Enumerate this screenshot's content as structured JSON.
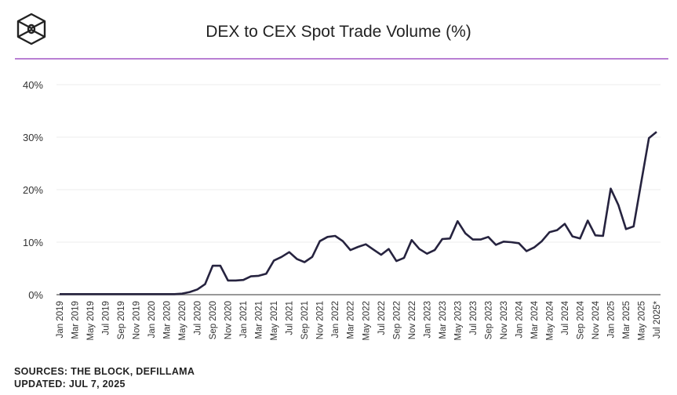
{
  "header": {
    "title": "DEX to CEX Spot Trade Volume (%)",
    "logo": "the-block-cube-logo"
  },
  "footer": {
    "sources": "SOURCES: THE BLOCK, DEFILLAMA",
    "updated": "UPDATED: JUL 7, 2025"
  },
  "colors": {
    "line": "#26233f",
    "rule": "#b97fd3",
    "grid": "#ececec",
    "axis": "#777777"
  },
  "chart_data": {
    "type": "line",
    "title": "DEX to CEX Spot Trade Volume (%)",
    "xlabel": "",
    "ylabel": "",
    "ylim": [
      0,
      40
    ],
    "yticks": [
      "0%",
      "10%",
      "20%",
      "30%",
      "40%"
    ],
    "grid": true,
    "xtick_labels": [
      "Jan 2019",
      "Mar 2019",
      "May 2019",
      "Jul 2019",
      "Sep 2019",
      "Nov 2019",
      "Jan 2020",
      "Mar 2020",
      "May 2020",
      "Jul 2020",
      "Sep 2020",
      "Nov 2020",
      "Jan 2021",
      "Mar 2021",
      "May 2021",
      "Jul 2021",
      "Sep 2021",
      "Nov 2021",
      "Jan 2022",
      "Mar 2022",
      "May 2022",
      "Jul 2022",
      "Sep 2022",
      "Nov 2022",
      "Jan 2023",
      "Mar 2023",
      "May 2023",
      "Jul 2023",
      "Sep 2023",
      "Nov 2023",
      "Jan 2024",
      "Mar 2024",
      "May 2024",
      "Jul 2024",
      "Sep 2024",
      "Nov 2024",
      "Jan 2025",
      "Mar 2025",
      "May 2025",
      "Jul 2025*"
    ],
    "x_start": "Jan 2019",
    "x_end": "Jul 2025",
    "x_interval": "monthly",
    "values": [
      0.1,
      0.1,
      0.1,
      0.1,
      0.1,
      0.1,
      0.1,
      0.1,
      0.1,
      0.1,
      0.1,
      0.1,
      0.1,
      0.1,
      0.1,
      0.1,
      0.2,
      0.5,
      1.0,
      2.0,
      5.5,
      5.5,
      2.7,
      2.7,
      2.8,
      3.5,
      3.6,
      4.0,
      6.5,
      7.2,
      8.1,
      6.8,
      6.2,
      7.2,
      10.2,
      11.0,
      11.2,
      10.2,
      8.5,
      9.1,
      9.6,
      8.6,
      7.6,
      8.7,
      6.4,
      7.0,
      10.4,
      8.7,
      7.8,
      8.5,
      10.6,
      10.7,
      14.0,
      11.7,
      10.5,
      10.5,
      11.0,
      9.5,
      10.1,
      10.0,
      9.8,
      8.3,
      9.0,
      10.2,
      11.9,
      12.3,
      13.5,
      11.1,
      10.7,
      14.1,
      11.3,
      11.2,
      20.2,
      17.1,
      12.5,
      13.0,
      21.5,
      29.8,
      31.0
    ]
  }
}
